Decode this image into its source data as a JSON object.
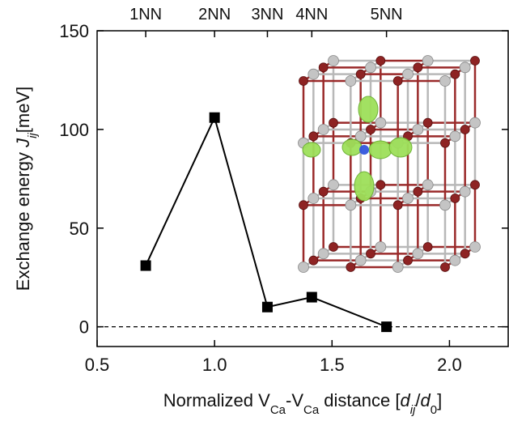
{
  "chart_data": {
    "type": "line",
    "ylabel": [
      {
        "text": "Exchange energy "
      },
      {
        "text": "J",
        "italic": true
      },
      {
        "text": "ij",
        "italic": true,
        "sub": true
      },
      {
        "text": "[meV]"
      }
    ],
    "xlabel": [
      {
        "text": "Normalized V"
      },
      {
        "text": "Ca",
        "sub": true
      },
      {
        "text": "-V"
      },
      {
        "text": "Ca",
        "sub": true
      },
      {
        "text": " distance ["
      },
      {
        "text": "d",
        "italic": true
      },
      {
        "text": "ij",
        "italic": true,
        "sub": true
      },
      {
        "text": "/"
      },
      {
        "text": "d",
        "italic": true
      },
      {
        "text": "0",
        "sub": true
      },
      {
        "text": "]"
      }
    ],
    "x": [
      0.707,
      1.0,
      1.225,
      1.414,
      1.732
    ],
    "series": [
      {
        "color": "#000000",
        "values": [
          31,
          106,
          10,
          15,
          0
        ]
      }
    ],
    "xlim": [
      0.5,
      2.25
    ],
    "ylim": [
      -10,
      150
    ],
    "xticks": [
      0.5,
      {
        "value": 1,
        "label": "1.0"
      },
      1.5,
      {
        "value": 2,
        "label": "2.0"
      }
    ],
    "yticks": [
      0,
      50,
      100,
      150
    ],
    "top_xticks": [
      {
        "value": 0.707,
        "label": "1NN"
      },
      {
        "value": 1.0,
        "label": "2NN"
      },
      {
        "value": 1.225,
        "label": "3NN"
      },
      {
        "value": 1.414,
        "label": "4NN"
      },
      {
        "value": 1.732,
        "label": "5NN"
      }
    ],
    "reference_line": 0
  }
}
